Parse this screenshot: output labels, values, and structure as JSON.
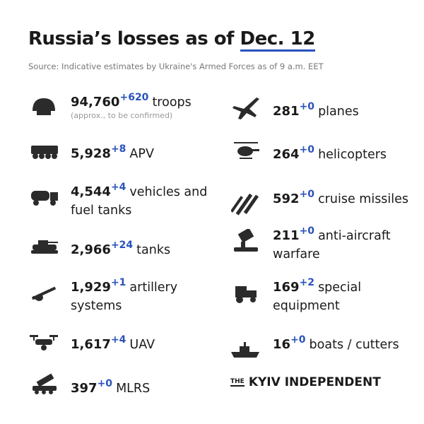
{
  "header": {
    "title": "Russia’s losses as of",
    "date": "Dec. 12",
    "source": "Source: Indicative estimates by Ukraine's Armed Forces as of 9 a.m. EET"
  },
  "left": [
    {
      "value": "94,760",
      "delta": "+620",
      "label": "troops",
      "note": "(approx., to be confirmed)"
    },
    {
      "value": "5,928",
      "delta": "+8",
      "label": "APV"
    },
    {
      "value": "4,544",
      "delta": "+4",
      "label": "vehicles and fuel tanks"
    },
    {
      "value": "2,966",
      "delta": "+24",
      "label": "tanks"
    },
    {
      "value": "1,929",
      "delta": "+1",
      "label": "artillery systems"
    },
    {
      "value": "1,617",
      "delta": "+4",
      "label": "UAV"
    },
    {
      "value": "397",
      "delta": "+0",
      "label": "MLRS"
    }
  ],
  "right": [
    {
      "value": "281",
      "delta": "+0",
      "label": "planes"
    },
    {
      "value": "264",
      "delta": "+0",
      "label": "helicopters"
    },
    {
      "value": "592",
      "delta": "+0",
      "label": "cruise missiles"
    },
    {
      "value": "211",
      "delta": "+0",
      "label": "anti-aircraft warfare"
    },
    {
      "value": "169",
      "delta": "+2",
      "label": "special equipment"
    },
    {
      "value": "16",
      "delta": "+0",
      "label": "boats / cutters"
    }
  ],
  "logo": {
    "small": "THE",
    "name": "KYIV INDEPENDENT"
  }
}
